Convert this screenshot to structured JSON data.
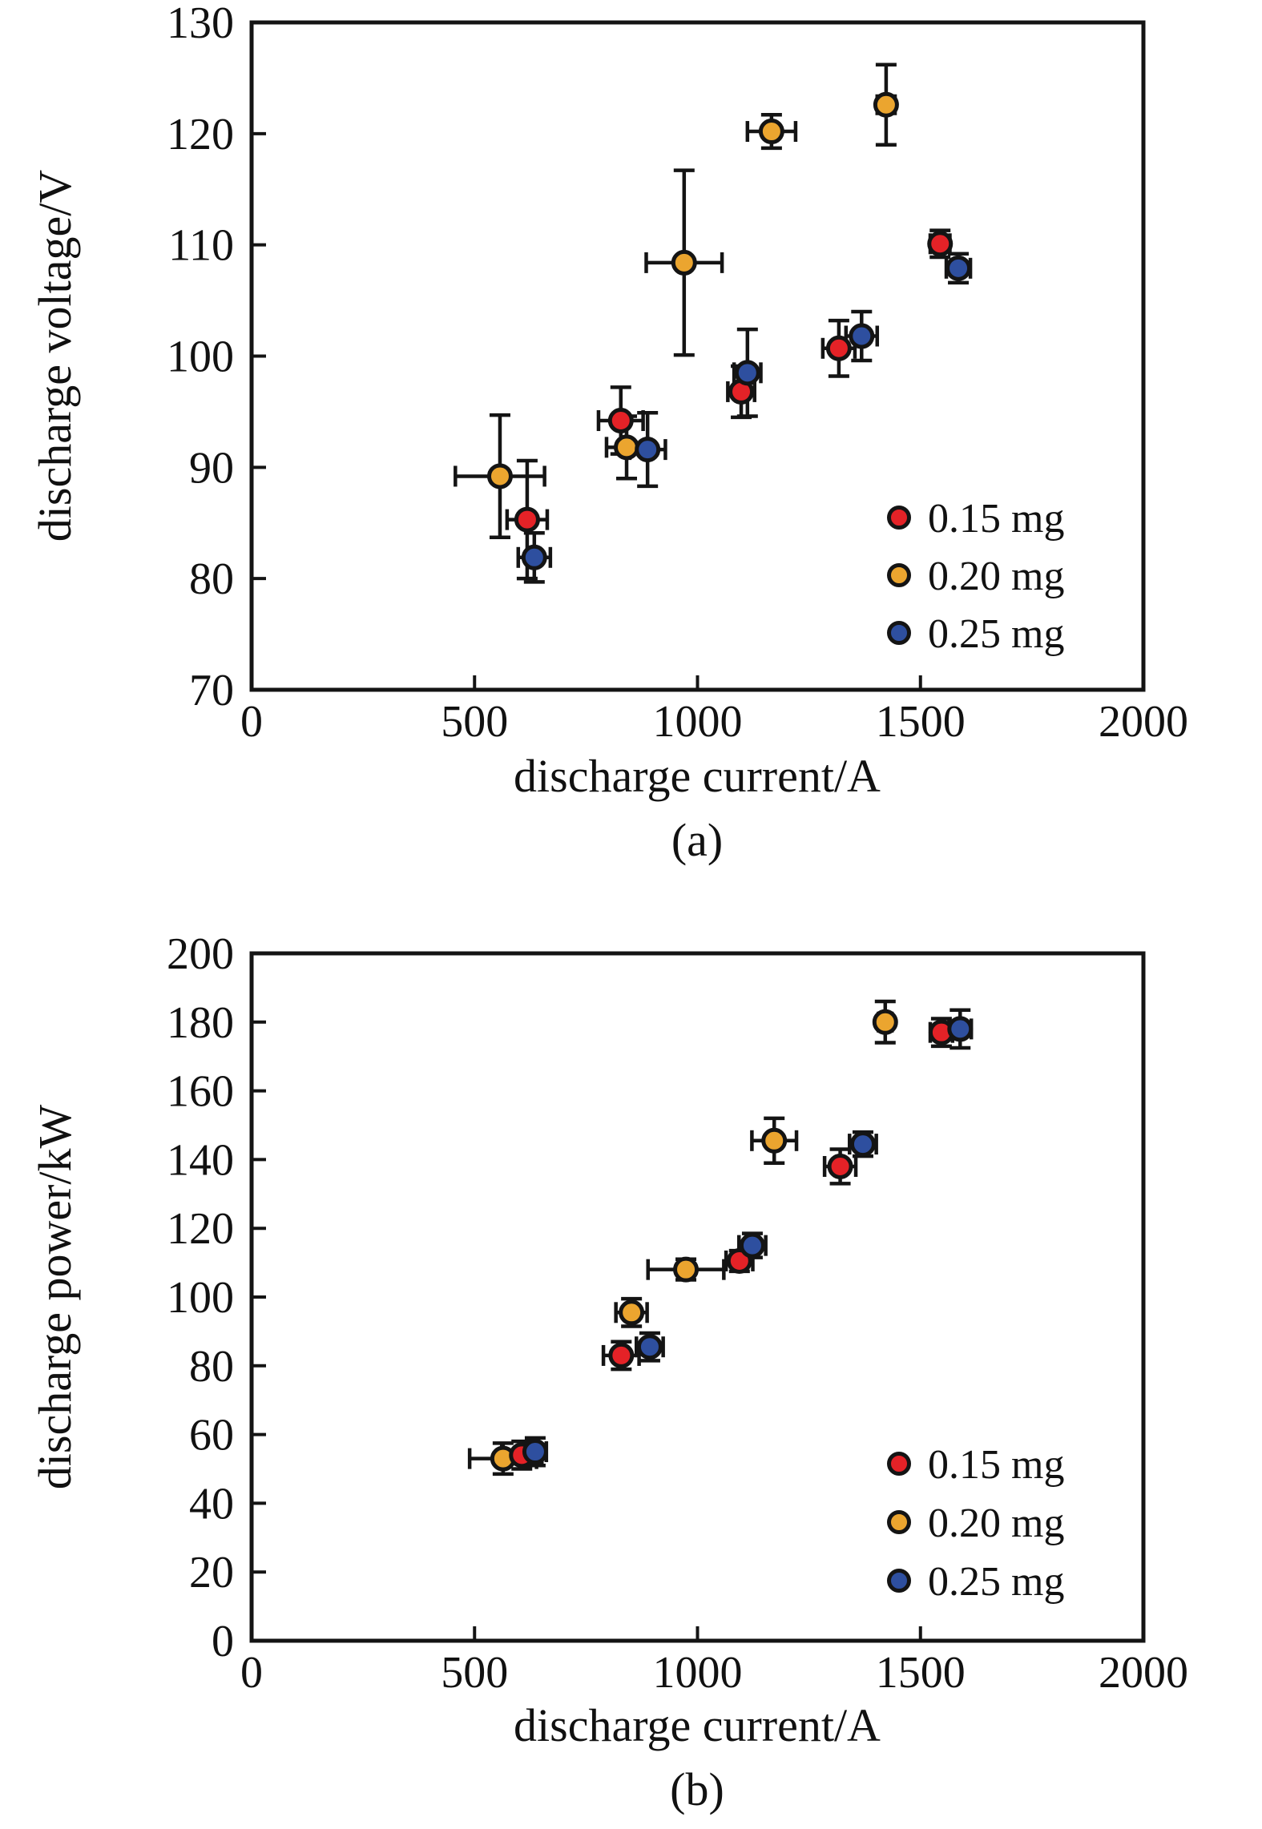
{
  "figure": {
    "background": "#ffffff",
    "marker_outline_color": "#141414",
    "axis_color": "#141414"
  },
  "chart_data": [
    {
      "id": "a",
      "type": "scatter",
      "caption": "(a)",
      "xlabel": "discharge current/A",
      "ylabel": "discharge voltage/V",
      "x_range": [
        0,
        2000
      ],
      "y_range": [
        70,
        130
      ],
      "x_ticks": [
        0,
        500,
        1000,
        1500,
        2000
      ],
      "y_ticks": [
        70,
        80,
        90,
        100,
        110,
        120,
        130
      ],
      "grid": false,
      "legend_position": "lower-right",
      "point_format": [
        "discharge_current_A",
        "discharge_voltage_V",
        "xerr_A",
        "yerr_V"
      ],
      "legend": [
        {
          "label": "0.15 mg",
          "color": "#e42227"
        },
        {
          "label": "0.20 mg",
          "color": "#eba52f"
        },
        {
          "label": "0.25 mg",
          "color": "#2e4f9f"
        }
      ],
      "series": [
        {
          "name": "0.20 mg",
          "color": "#eba52f",
          "points": [
            [
              557,
              89.2,
              100,
              5.5
            ],
            [
              841,
              91.8,
              45,
              2.8
            ],
            [
              970,
              108.4,
              85,
              8.3
            ],
            [
              1166,
              120.2,
              54,
              1.5
            ],
            [
              1423,
              122.6,
              20,
              3.6
            ]
          ]
        },
        {
          "name": "0.15 mg",
          "color": "#e42227",
          "points": [
            [
              618,
              85.3,
              45,
              5.3
            ],
            [
              828,
              94.2,
              50,
              3.0
            ],
            [
              1098,
              96.8,
              30,
              2.3
            ],
            [
              1317,
              100.7,
              36,
              2.5
            ],
            [
              1544,
              110.1,
              22,
              1.2
            ]
          ]
        },
        {
          "name": "0.25 mg",
          "color": "#2e4f9f",
          "points": [
            [
              634,
              81.9,
              36,
              2.2
            ],
            [
              888,
              91.6,
              40,
              3.3
            ],
            [
              1112,
              98.5,
              30,
              3.9
            ],
            [
              1368,
              101.8,
              35,
              2.2
            ],
            [
              1585,
              107.9,
              27,
              1.3
            ]
          ]
        }
      ]
    },
    {
      "id": "b",
      "type": "scatter",
      "caption": "(b)",
      "xlabel": "discharge current/A",
      "ylabel": "discharge power/kW",
      "x_range": [
        0,
        2000
      ],
      "y_range": [
        0,
        200
      ],
      "x_ticks": [
        0,
        500,
        1000,
        1500,
        2000
      ],
      "y_ticks": [
        0,
        20,
        40,
        60,
        80,
        100,
        120,
        140,
        160,
        180,
        200
      ],
      "grid": false,
      "legend_position": "lower-right",
      "point_format": [
        "discharge_current_A",
        "discharge_power_kW",
        "xerr_A",
        "yerr_kW"
      ],
      "legend": [
        {
          "label": "0.15 mg",
          "color": "#e42227"
        },
        {
          "label": "0.20 mg",
          "color": "#eba52f"
        },
        {
          "label": "0.25 mg",
          "color": "#2e4f9f"
        }
      ],
      "series": [
        {
          "name": "0.20 mg",
          "color": "#eba52f",
          "points": [
            [
              564,
              53.0,
              75,
              4.5
            ],
            [
              852,
              95.5,
              35,
              4.0
            ],
            [
              974,
              108.0,
              85,
              3.0
            ],
            [
              1172,
              145.5,
              50,
              6.5
            ],
            [
              1421,
              180.0,
              15,
              6.0
            ]
          ]
        },
        {
          "name": "0.15 mg",
          "color": "#e42227",
          "points": [
            [
              606,
              54.0,
              45,
              4.0
            ],
            [
              829,
              83.0,
              40,
              4.0
            ],
            [
              1094,
              110.5,
              30,
              3.0
            ],
            [
              1320,
              138.0,
              35,
              5.0
            ],
            [
              1547,
              177.0,
              25,
              4.0
            ]
          ]
        },
        {
          "name": "0.25 mg",
          "color": "#2e4f9f",
          "points": [
            [
              636,
              55.0,
              25,
              4.0
            ],
            [
              893,
              85.5,
              30,
              4.0
            ],
            [
              1123,
              115.0,
              30,
              3.5
            ],
            [
              1371,
              144.5,
              30,
              3.5
            ],
            [
              1589,
              178.0,
              25,
              5.5
            ]
          ]
        }
      ]
    }
  ]
}
